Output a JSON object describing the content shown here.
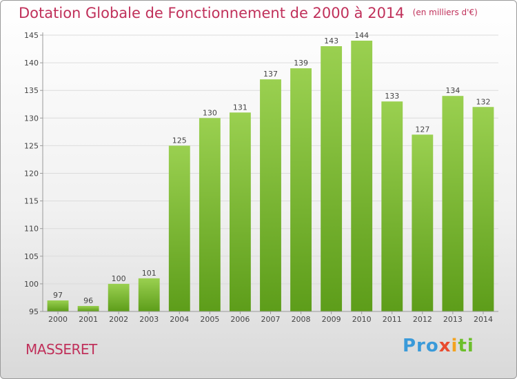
{
  "title": "Dotation Globale de Fonctionnement de 2000 à 2014",
  "unit_label": "(en milliers d'€)",
  "city": "MASSERET",
  "brand": {
    "p1": "Pro",
    "p2": "x",
    "p3": "i",
    "p4": "ti"
  },
  "colors": {
    "title": "#c0305a",
    "bar_top": "#9ad050",
    "bar_bottom": "#5d9d1a"
  },
  "chart_data": {
    "type": "bar",
    "categories": [
      "2000",
      "2001",
      "2002",
      "2003",
      "2004",
      "2005",
      "2006",
      "2007",
      "2008",
      "2009",
      "2010",
      "2011",
      "2012",
      "2013",
      "2014"
    ],
    "values": [
      97,
      96,
      100,
      101,
      125,
      130,
      131,
      137,
      139,
      143,
      144,
      133,
      127,
      134,
      132
    ],
    "ylim": [
      95,
      145
    ],
    "yticks": [
      95,
      100,
      105,
      110,
      115,
      120,
      125,
      130,
      135,
      140,
      145
    ],
    "grid": true,
    "xlabel": "",
    "ylabel": ""
  }
}
